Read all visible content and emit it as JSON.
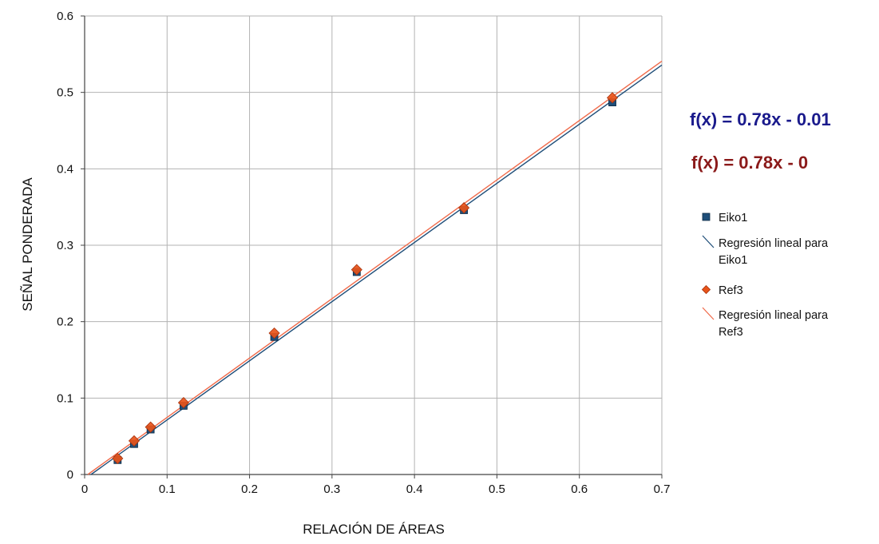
{
  "chart_data": {
    "type": "scatter",
    "xlabel": "RELACIÓN DE ÁREAS",
    "ylabel": "SEÑAL PONDERADA",
    "xlim": [
      0,
      0.7
    ],
    "ylim": [
      0,
      0.6
    ],
    "xticks": [
      0,
      0.1,
      0.2,
      0.3,
      0.4,
      0.5,
      0.6,
      0.7
    ],
    "yticks": [
      0,
      0.1,
      0.2,
      0.3,
      0.4,
      0.5,
      0.6
    ],
    "x_tick_labels": [
      "0",
      "0.1",
      "0.2",
      "0.3",
      "0.4",
      "0.5",
      "0.6",
      "0.7"
    ],
    "y_tick_labels": [
      "0",
      "0.1",
      "0.2",
      "0.3",
      "0.4",
      "0.5",
      "0.6"
    ],
    "grid": true,
    "legend_position": "right",
    "series": [
      {
        "name": "Eiko1",
        "marker": "square",
        "color": "#1f4e79",
        "x": [
          0.04,
          0.06,
          0.08,
          0.12,
          0.23,
          0.33,
          0.46,
          0.64
        ],
        "y": [
          0.019,
          0.04,
          0.059,
          0.09,
          0.18,
          0.265,
          0.346,
          0.487
        ],
        "regression": {
          "label": "Regresión lineal para Eiko1",
          "equation": "f(x) = 0.78x - 0.01",
          "slope": 0.774,
          "intercept": -0.006,
          "color": "#1f4e79",
          "equation_color": "#1a1a8c"
        }
      },
      {
        "name": "Ref3",
        "marker": "diamond",
        "color": "#e8541a",
        "x": [
          0.04,
          0.06,
          0.08,
          0.12,
          0.23,
          0.33,
          0.46,
          0.64
        ],
        "y": [
          0.021,
          0.044,
          0.062,
          0.094,
          0.185,
          0.268,
          0.349,
          0.493
        ],
        "regression": {
          "label": "Regresión lineal para Ref3",
          "equation": "f(x) = 0.78x - 0",
          "slope": 0.777,
          "intercept": -0.003,
          "color": "#f06a4a",
          "equation_color": "#8b1a1a"
        }
      }
    ]
  },
  "legend": {
    "items": [
      {
        "lines": [
          "Eiko1"
        ]
      },
      {
        "lines": [
          "Regresión lineal para",
          "Eiko1"
        ]
      },
      {
        "lines": [
          "Ref3"
        ]
      },
      {
        "lines": [
          "Regresión lineal para",
          "Ref3"
        ]
      }
    ]
  }
}
